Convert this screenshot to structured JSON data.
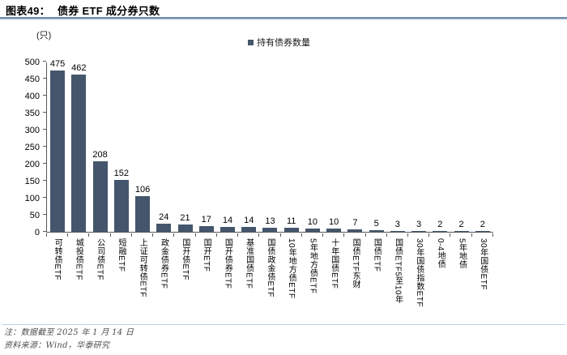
{
  "figure": {
    "title_prefix": "图表49：",
    "title_text": "债券 ETF 成分券只数",
    "unit_label": "(只)",
    "legend_label": "持有债券数量",
    "note_line1": "注：数据截至 2025 年 1 月 14 日",
    "note_line2": "资料来源：Wind，华泰研究"
  },
  "colors": {
    "bar": "#44566c",
    "legend_marker": "#44566c",
    "note_rule": "#bcd0e4",
    "note_text": "#4d4d4d"
  },
  "chart_data": {
    "type": "bar",
    "title": "债券 ETF 成分券只数",
    "ylabel": "(只)",
    "legend": [
      "持有债券数量"
    ],
    "legend_position": "top",
    "grid": false,
    "ylim": [
      0,
      500
    ],
    "ytick_step": 50,
    "categories": [
      "可转债ETF",
      "城投债ETF",
      "公司债ETF",
      "短融ETF",
      "上证可转债ETF",
      "政金债券ETF",
      "国开债ETF",
      "国开ETF",
      "国开债券ETF",
      "基准国债ETF",
      "国债政金债ETF",
      "10年地方债ETF",
      "5年地方债ETF",
      "十年国债ETF",
      "国债ETF东财",
      "国债ETF",
      "国债ETF5至10年",
      "30年国债指数ETF",
      "0-4地债",
      "5年地债",
      "30年国债ETF"
    ],
    "values": [
      475,
      462,
      208,
      152,
      106,
      24,
      21,
      17,
      14,
      14,
      13,
      11,
      10,
      10,
      7,
      5,
      3,
      3,
      2,
      2,
      2
    ]
  }
}
